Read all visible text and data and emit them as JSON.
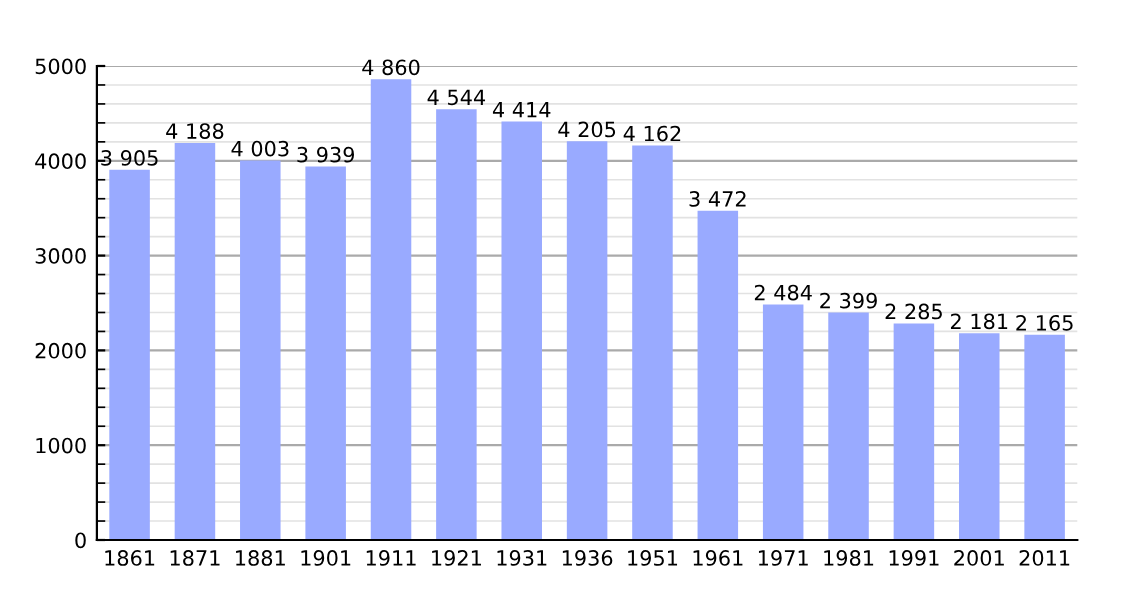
{
  "chart_data": {
    "type": "bar",
    "categories": [
      "1861",
      "1871",
      "1881",
      "1901",
      "1911",
      "1921",
      "1931",
      "1936",
      "1951",
      "1961",
      "1971",
      "1981",
      "1991",
      "2001",
      "2011"
    ],
    "values": [
      3905,
      4188,
      4003,
      3939,
      4860,
      4544,
      4414,
      4205,
      4162,
      3472,
      2484,
      2399,
      2285,
      2181,
      2165
    ],
    "value_labels": [
      "3 905",
      "4 188",
      "4 003",
      "3 939",
      "4 860",
      "4 544",
      "4 414",
      "4 205",
      "4 162",
      "3 472",
      "2 484",
      "2 399",
      "2 285",
      "2 181",
      "2 165"
    ],
    "color": "#99aaff",
    "ylim": [
      0,
      5000
    ],
    "yticks": [
      0,
      1000,
      2000,
      3000,
      4000,
      5000
    ],
    "grid": true
  }
}
